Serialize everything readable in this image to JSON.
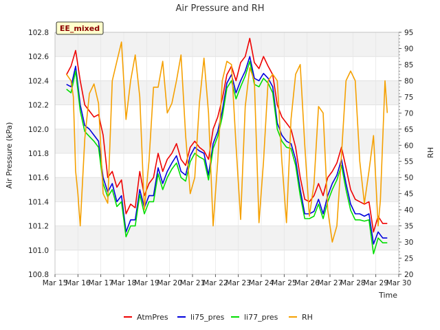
{
  "chart_data": {
    "type": "line",
    "title": "Air Pressure and RH",
    "badge": "EE_mixed",
    "xlabel": "Time",
    "ylabel": "Air Pressure (kPa)",
    "y2label": "RH",
    "xlim": [
      15,
      30
    ],
    "ylim": [
      100.8,
      102.8
    ],
    "y2lim": [
      20,
      95
    ],
    "x_ticks": [
      {
        "value": 15,
        "label": "Mar 15"
      },
      {
        "value": 16,
        "label": "Mar 16"
      },
      {
        "value": 17,
        "label": "Mar 17"
      },
      {
        "value": 18,
        "label": "Mar 18"
      },
      {
        "value": 19,
        "label": "Mar 19"
      },
      {
        "value": 20,
        "label": "Mar 20"
      },
      {
        "value": 21,
        "label": "Mar 21"
      },
      {
        "value": 22,
        "label": "Mar 22"
      },
      {
        "value": 23,
        "label": "Mar 23"
      },
      {
        "value": 24,
        "label": "Mar 24"
      },
      {
        "value": 25,
        "label": "Mar 25"
      },
      {
        "value": 26,
        "label": "Mar 26"
      },
      {
        "value": 27,
        "label": "Mar 27"
      },
      {
        "value": 28,
        "label": "Mar 28"
      },
      {
        "value": 29,
        "label": "Mar 29"
      },
      {
        "value": 30,
        "label": "Mar 30"
      }
    ],
    "y_ticks": [
      "100.8",
      "101.0",
      "101.2",
      "101.4",
      "101.6",
      "101.8",
      "102.0",
      "102.2",
      "102.4",
      "102.6",
      "102.8"
    ],
    "y2_ticks": [
      "20",
      "25",
      "30",
      "35",
      "40",
      "45",
      "50",
      "55",
      "60",
      "65",
      "70",
      "75",
      "80",
      "85",
      "90",
      "95"
    ],
    "legend_position": "bottom-center",
    "grid": true,
    "series": [
      {
        "name": "AtmPres",
        "color": "#ee0000",
        "axis": "left",
        "x": [
          15.5,
          15.7,
          15.9,
          16.1,
          16.3,
          16.5,
          16.7,
          16.9,
          17.1,
          17.3,
          17.5,
          17.7,
          17.9,
          18.1,
          18.3,
          18.5,
          18.7,
          18.9,
          19.1,
          19.3,
          19.5,
          19.7,
          19.9,
          20.1,
          20.3,
          20.5,
          20.7,
          20.9,
          21.1,
          21.3,
          21.5,
          21.7,
          21.9,
          22.1,
          22.3,
          22.5,
          22.7,
          22.9,
          23.1,
          23.3,
          23.5,
          23.7,
          23.9,
          24.1,
          24.3,
          24.5,
          24.7,
          24.9,
          25.1,
          25.3,
          25.5,
          25.7,
          25.9,
          26.1,
          26.3,
          26.5,
          26.7,
          26.9,
          27.1,
          27.3,
          27.5,
          27.7,
          27.9,
          28.1,
          28.3,
          28.5,
          28.7,
          28.9,
          29.1,
          29.3,
          29.5
        ],
        "y": [
          102.45,
          102.52,
          102.65,
          102.4,
          102.2,
          102.15,
          102.1,
          102.12,
          101.95,
          101.6,
          101.65,
          101.52,
          101.58,
          101.3,
          101.38,
          101.35,
          101.65,
          101.45,
          101.55,
          101.6,
          101.8,
          101.65,
          101.75,
          101.8,
          101.88,
          101.75,
          101.7,
          101.85,
          101.9,
          101.85,
          101.82,
          101.75,
          102.0,
          102.1,
          102.25,
          102.45,
          102.52,
          102.4,
          102.55,
          102.6,
          102.75,
          102.55,
          102.5,
          102.6,
          102.52,
          102.45,
          102.2,
          102.1,
          102.05,
          102.0,
          101.85,
          101.6,
          101.42,
          101.4,
          101.45,
          101.55,
          101.45,
          101.6,
          101.65,
          101.72,
          101.85,
          101.68,
          101.5,
          101.42,
          101.4,
          101.38,
          101.4,
          101.15,
          101.28,
          101.22,
          101.22
        ]
      },
      {
        "name": "li75_pres",
        "color": "#0000dd",
        "axis": "left",
        "x": [
          15.5,
          15.7,
          15.9,
          16.1,
          16.3,
          16.5,
          16.7,
          16.9,
          17.1,
          17.3,
          17.5,
          17.7,
          17.9,
          18.1,
          18.3,
          18.5,
          18.7,
          18.9,
          19.1,
          19.3,
          19.5,
          19.7,
          19.9,
          20.1,
          20.3,
          20.5,
          20.7,
          20.9,
          21.1,
          21.3,
          21.5,
          21.7,
          21.9,
          22.1,
          22.3,
          22.5,
          22.7,
          22.9,
          23.1,
          23.3,
          23.5,
          23.7,
          23.9,
          24.1,
          24.3,
          24.5,
          24.7,
          24.9,
          25.1,
          25.3,
          25.5,
          25.7,
          25.9,
          26.1,
          26.3,
          26.5,
          26.7,
          26.9,
          27.1,
          27.3,
          27.5,
          27.7,
          27.9,
          28.1,
          28.3,
          28.5,
          28.7,
          28.9,
          29.1,
          29.3,
          29.5
        ],
        "y": [
          102.37,
          102.35,
          102.52,
          102.2,
          102.03,
          102.0,
          101.95,
          101.9,
          101.6,
          101.48,
          101.55,
          101.4,
          101.45,
          101.15,
          101.25,
          101.25,
          101.5,
          101.35,
          101.45,
          101.45,
          101.68,
          101.55,
          101.65,
          101.72,
          101.78,
          101.65,
          101.62,
          101.78,
          101.85,
          101.82,
          101.8,
          101.62,
          101.88,
          101.98,
          102.15,
          102.38,
          102.45,
          102.3,
          102.4,
          102.48,
          102.6,
          102.42,
          102.4,
          102.46,
          102.42,
          102.35,
          102.05,
          101.95,
          101.9,
          101.88,
          101.75,
          101.5,
          101.3,
          101.3,
          101.32,
          101.42,
          101.3,
          101.45,
          101.55,
          101.62,
          101.75,
          101.55,
          101.38,
          101.3,
          101.3,
          101.28,
          101.3,
          101.05,
          101.15,
          101.1,
          101.1
        ]
      },
      {
        "name": "li77_pres",
        "color": "#00dd00",
        "axis": "left",
        "x": [
          15.5,
          15.7,
          15.9,
          16.1,
          16.3,
          16.5,
          16.7,
          16.9,
          17.1,
          17.3,
          17.5,
          17.7,
          17.9,
          18.1,
          18.3,
          18.5,
          18.7,
          18.9,
          19.1,
          19.3,
          19.5,
          19.7,
          19.9,
          20.1,
          20.3,
          20.5,
          20.7,
          20.9,
          21.1,
          21.3,
          21.5,
          21.7,
          21.9,
          22.1,
          22.3,
          22.5,
          22.7,
          22.9,
          23.1,
          23.3,
          23.5,
          23.7,
          23.9,
          24.1,
          24.3,
          24.5,
          24.7,
          24.9,
          25.1,
          25.3,
          25.5,
          25.7,
          25.9,
          26.1,
          26.3,
          26.5,
          26.7,
          26.9,
          27.1,
          27.3,
          27.5,
          27.7,
          27.9,
          28.1,
          28.3,
          28.5,
          28.7,
          28.9,
          29.1,
          29.3,
          29.5
        ],
        "y": [
          102.33,
          102.3,
          102.48,
          102.15,
          101.98,
          101.94,
          101.9,
          101.85,
          101.55,
          101.44,
          101.5,
          101.36,
          101.4,
          101.11,
          101.2,
          101.2,
          101.46,
          101.3,
          101.4,
          101.4,
          101.63,
          101.5,
          101.6,
          101.67,
          101.72,
          101.6,
          101.57,
          101.73,
          101.8,
          101.77,
          101.75,
          101.58,
          101.84,
          101.94,
          102.1,
          102.34,
          102.4,
          102.25,
          102.35,
          102.44,
          102.56,
          102.37,
          102.35,
          102.42,
          102.38,
          102.3,
          102.0,
          101.9,
          101.85,
          101.84,
          101.7,
          101.45,
          101.26,
          101.26,
          101.28,
          101.38,
          101.26,
          101.4,
          101.5,
          101.58,
          101.7,
          101.5,
          101.33,
          101.25,
          101.25,
          101.24,
          101.25,
          100.97,
          101.1,
          101.06,
          101.06
        ]
      },
      {
        "name": "RH",
        "color": "#f5a000",
        "axis": "right",
        "x": [
          15.5,
          15.7,
          15.8,
          15.9,
          16.0,
          16.1,
          16.3,
          16.5,
          16.7,
          16.9,
          17.1,
          17.3,
          17.5,
          17.7,
          17.9,
          18.1,
          18.3,
          18.5,
          18.7,
          18.9,
          19.1,
          19.3,
          19.5,
          19.7,
          19.9,
          20.1,
          20.3,
          20.5,
          20.7,
          20.9,
          21.1,
          21.3,
          21.5,
          21.7,
          21.9,
          22.1,
          22.3,
          22.5,
          22.7,
          22.9,
          23.1,
          23.3,
          23.5,
          23.7,
          23.9,
          24.1,
          24.3,
          24.5,
          24.7,
          24.9,
          25.1,
          25.3,
          25.5,
          25.7,
          25.9,
          26.1,
          26.3,
          26.5,
          26.7,
          26.9,
          27.1,
          27.3,
          27.5,
          27.7,
          27.9,
          28.1,
          28.3,
          28.5,
          28.7,
          28.9,
          29.1,
          29.2,
          29.4,
          29.5
        ],
        "y": [
          82,
          80,
          75,
          52,
          45,
          35,
          62,
          76,
          79,
          73,
          45,
          42,
          80,
          86,
          92,
          68,
          80,
          88,
          75,
          40,
          55,
          78,
          78,
          86,
          70,
          73,
          80,
          88,
          63,
          45,
          50,
          73,
          87,
          70,
          35,
          55,
          80,
          86,
          85,
          60,
          37,
          72,
          84,
          80,
          36,
          55,
          80,
          82,
          80,
          55,
          36,
          68,
          82,
          85,
          60,
          38,
          48,
          72,
          70,
          40,
          30,
          35,
          57,
          80,
          83,
          80,
          55,
          42,
          52,
          63,
          35,
          43,
          80,
          70
        ]
      }
    ]
  }
}
